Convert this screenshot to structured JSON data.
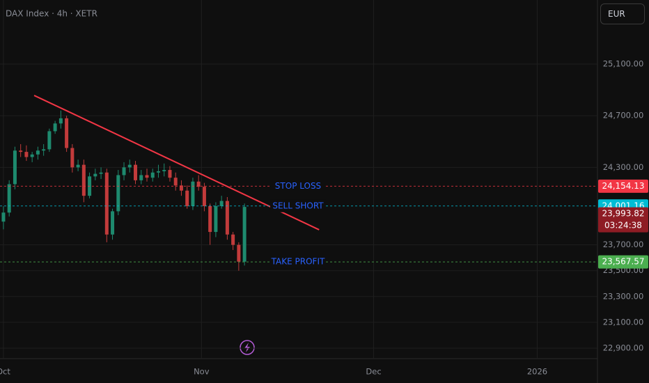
{
  "chart_data": {
    "type": "candlestick",
    "title": "DAX Index · 4h · XETR",
    "currency": "EUR",
    "x": [
      0,
      2,
      4,
      6,
      8,
      10,
      12,
      14,
      16,
      18,
      20,
      22,
      24,
      26,
      28,
      30,
      32,
      34,
      36,
      38,
      40,
      42,
      44,
      46,
      48,
      50,
      52,
      54,
      56,
      58,
      60,
      62,
      64,
      66,
      68,
      70,
      72,
      74,
      76,
      78,
      80,
      82,
      84
    ],
    "open": [
      23880,
      23950,
      24170,
      24430,
      24420,
      24380,
      24400,
      24430,
      24440,
      24580,
      24640,
      24680,
      24450,
      24300,
      24320,
      24080,
      24230,
      24250,
      24260,
      23780,
      23960,
      24240,
      24300,
      24320,
      24200,
      24240,
      24220,
      24260,
      24270,
      24280,
      24220,
      24160,
      24120,
      24000,
      24190,
      24150,
      24000,
      23800,
      24000,
      24040,
      23780,
      23700,
      23570
    ],
    "high": [
      24000,
      24200,
      24460,
      24480,
      24470,
      24420,
      24460,
      24480,
      24600,
      24660,
      24740,
      24700,
      24480,
      24360,
      24360,
      24260,
      24290,
      24300,
      24290,
      23980,
      24280,
      24340,
      24360,
      24350,
      24280,
      24290,
      24290,
      24320,
      24330,
      24310,
      24260,
      24200,
      24160,
      24220,
      24240,
      24180,
      24020,
      24030,
      24080,
      24070,
      23800,
      23720,
      24020
    ],
    "low": [
      23820,
      23920,
      24130,
      24380,
      24350,
      24340,
      24360,
      24390,
      24420,
      24560,
      24600,
      24420,
      24260,
      24270,
      24030,
      24060,
      24200,
      24210,
      23720,
      23740,
      23930,
      24200,
      24260,
      24170,
      24170,
      24190,
      24190,
      24220,
      24230,
      24190,
      24120,
      24080,
      23980,
      23970,
      24120,
      23960,
      23700,
      23760,
      23980,
      23740,
      23660,
      23500,
      23540
    ],
    "close": [
      23950,
      24170,
      24430,
      24420,
      24380,
      24400,
      24430,
      24440,
      24580,
      24640,
      24680,
      24450,
      24300,
      24320,
      24080,
      24230,
      24250,
      24260,
      23780,
      23960,
      24240,
      24300,
      24320,
      24200,
      24240,
      24220,
      24260,
      24270,
      24280,
      24220,
      24160,
      24120,
      24000,
      24190,
      24150,
      24000,
      23800,
      24000,
      24040,
      23780,
      23700,
      23570,
      23993.82
    ],
    "up_color": "#1e8a6e",
    "down_color": "#c23b3b",
    "xlim": [
      -1.2,
      207
    ],
    "ylim": [
      22819,
      25596
    ],
    "xticks": [
      {
        "value": 0,
        "label": "Oct"
      },
      {
        "value": 69,
        "label": "Nov"
      },
      {
        "value": 129,
        "label": "Dec"
      },
      {
        "value": 186,
        "label": "2026"
      }
    ],
    "yticks": [
      {
        "value": 25100,
        "label": "25,100.00"
      },
      {
        "value": 24700,
        "label": "24,700.00"
      },
      {
        "value": 24300,
        "label": "24,300.00"
      },
      {
        "value": 23700,
        "label": "23,700.00"
      },
      {
        "value": 23500,
        "label": "23,500.00"
      },
      {
        "value": 23300,
        "label": "23,300.00"
      },
      {
        "value": 23100,
        "label": "23,100.00"
      },
      {
        "value": 22900,
        "label": "22,900.00"
      }
    ],
    "grid": true,
    "levels": [
      {
        "name": "STOP LOSS",
        "value": 24154.13,
        "label": "24,154.13",
        "color": "#f23645"
      },
      {
        "name": "SELL SHORT",
        "value": 24001.16,
        "label": "24,001.16",
        "color": "#00bcd4"
      },
      {
        "name": "TAKE PROFIT",
        "value": 23567.57,
        "label": "23,567.57",
        "color": "#4caf50"
      }
    ],
    "last_price": {
      "value": 23993.82,
      "label": "23,993.82",
      "countdown": "03:24:38",
      "color": "#8e1c24"
    },
    "trendline": {
      "x": [
        10.7,
        110
      ],
      "y": [
        24857,
        23817
      ],
      "color": "#f23645"
    }
  }
}
